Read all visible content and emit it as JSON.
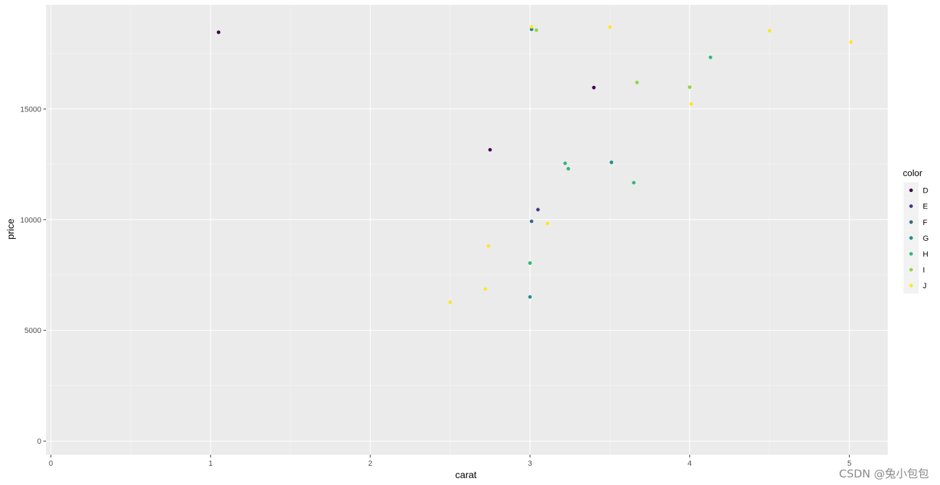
{
  "chart_data": {
    "type": "scatter",
    "title": "",
    "xlabel": "carat",
    "ylabel": "price",
    "xlim": [
      -0.03,
      5.24
    ],
    "ylim": [
      -615,
      19700
    ],
    "x_ticks": [
      0,
      1,
      2,
      3,
      4,
      5
    ],
    "x_tick_labels": [
      "0",
      "1",
      "2",
      "3",
      "4",
      "5"
    ],
    "y_ticks": [
      0,
      5000,
      10000,
      15000
    ],
    "y_tick_labels": [
      "0",
      "5000",
      "10000",
      "15000"
    ],
    "grid": true,
    "legend": {
      "title": "color",
      "placement": "right"
    },
    "series": [
      {
        "name": "D",
        "color": "#440154"
      },
      {
        "name": "E",
        "color": "#443A83"
      },
      {
        "name": "F",
        "color": "#31688E"
      },
      {
        "name": "G",
        "color": "#21908C"
      },
      {
        "name": "H",
        "color": "#35B779"
      },
      {
        "name": "I",
        "color": "#8FD744"
      },
      {
        "name": "J",
        "color": "#FDE725"
      }
    ],
    "points": [
      {
        "series": "D",
        "x": 3.4,
        "y": 15964
      },
      {
        "series": "E",
        "x": 3.05,
        "y": 10453
      },
      {
        "series": "F",
        "x": 3.01,
        "y": 9925
      },
      {
        "series": "G",
        "x": 3.0,
        "y": 6512
      },
      {
        "series": "G",
        "x": 3.01,
        "y": 18593
      },
      {
        "series": "G",
        "x": 3.51,
        "y": 12587
      },
      {
        "series": "H",
        "x": 4.13,
        "y": 17329
      },
      {
        "series": "H",
        "x": 3.22,
        "y": 12545
      },
      {
        "series": "H",
        "x": 3.24,
        "y": 12300
      },
      {
        "series": "H",
        "x": 3.65,
        "y": 11668
      },
      {
        "series": "H",
        "x": 3.0,
        "y": 8040
      },
      {
        "series": "I",
        "x": 4.0,
        "y": 15984
      },
      {
        "series": "I",
        "x": 3.67,
        "y": 16193
      },
      {
        "series": "I",
        "x": 3.04,
        "y": 18559
      },
      {
        "series": "J",
        "x": 5.01,
        "y": 18018
      },
      {
        "series": "J",
        "x": 4.5,
        "y": 18531
      },
      {
        "series": "J",
        "x": 3.5,
        "y": 18701
      },
      {
        "series": "J",
        "x": 4.01,
        "y": 15223
      },
      {
        "series": "J",
        "x": 3.11,
        "y": 9823
      },
      {
        "series": "J",
        "x": 3.01,
        "y": 18710
      },
      {
        "series": "J",
        "x": 2.74,
        "y": 8807
      },
      {
        "series": "J",
        "x": 2.5,
        "y": 6275
      },
      {
        "series": "J",
        "x": 2.72,
        "y": 6870
      },
      {
        "series": "D",
        "x": 1.05,
        "y": 18462
      },
      {
        "series": "D",
        "x": 2.75,
        "y": 13156
      }
    ]
  },
  "watermark": "CSDN @兔小包包"
}
